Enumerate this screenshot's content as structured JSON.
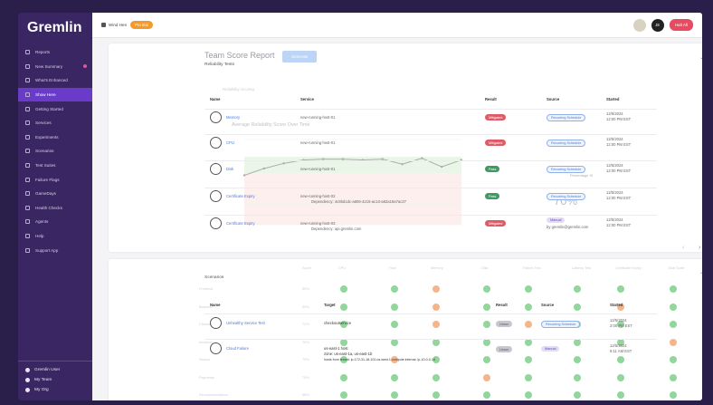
{
  "app": {
    "logo": "Gremlin"
  },
  "sidebar": {
    "items": [
      {
        "label": "Reports",
        "active": false,
        "icon": "chart-icon"
      },
      {
        "label": "New Summary",
        "active": false,
        "icon": "refresh-icon",
        "dot": true
      },
      {
        "label": "What's Enhanced",
        "active": false,
        "icon": "star-icon"
      },
      {
        "label": "Show Here",
        "active": true,
        "icon": "eye-icon"
      },
      {
        "label": "Getting Started",
        "active": false,
        "icon": "flag-icon"
      },
      {
        "label": "Services",
        "active": false,
        "icon": "cube-icon"
      },
      {
        "label": "Experiments",
        "active": false,
        "icon": "flask-icon"
      },
      {
        "label": "Scenarios",
        "active": false,
        "icon": "layers-icon"
      },
      {
        "label": "Test Suites",
        "active": false,
        "icon": "list-icon"
      },
      {
        "label": "Failure Flags",
        "active": false,
        "icon": "flag-icon"
      },
      {
        "label": "GameDays",
        "active": false,
        "icon": "calendar-icon"
      },
      {
        "label": "Health Checks",
        "active": false,
        "icon": "heart-icon"
      },
      {
        "label": "Agents",
        "active": false,
        "icon": "server-icon"
      },
      {
        "label": "Help",
        "active": false,
        "icon": "help-icon"
      },
      {
        "label": "Support App",
        "active": false,
        "icon": "support-icon"
      }
    ],
    "bottom": [
      {
        "label": "Gremlin User"
      },
      {
        "label": "My Team"
      },
      {
        "label": "My Org"
      }
    ]
  },
  "topbar": {
    "team": "Wind Hen",
    "trial": "Pro trial",
    "avatar_initials": "JE",
    "halt_label": "Halt All"
  },
  "report": {
    "title": "Team Score Report",
    "generate_label": "Generate",
    "subtitle": "Reliability Tests",
    "ghost_subtitle": "Reliability Scoring",
    "chart_title": "Average Reliability Score Over Time",
    "big_value": "70%",
    "overlay_label": "Percentage III",
    "columns": [
      "Name",
      "Service",
      "Result",
      "Source",
      "Started"
    ],
    "rows": [
      {
        "name": "Memory",
        "service": "new-running-host-01",
        "service2": "",
        "result": "Mitigated",
        "result_type": "red",
        "source": "Recurring Schedule",
        "source_type": "chip",
        "started": "12/5/2024",
        "started_time": "12:00 PM EST"
      },
      {
        "name": "CPU",
        "service": "new-running-host-01",
        "service2": "",
        "result": "Mitigated",
        "result_type": "red",
        "source": "Recurring Schedule",
        "source_type": "chip",
        "started": "12/5/2024",
        "started_time": "12:00 PM EST"
      },
      {
        "name": "Disk",
        "service": "new-running-host-01",
        "service2": "",
        "result": "Pass",
        "result_type": "green",
        "source": "Recurring Schedule",
        "source_type": "chip",
        "started": "12/5/2024",
        "started_time": "12:00 PM EST"
      },
      {
        "name": "Certificate Expiry",
        "service": "new-running-host-02",
        "service2": "Dependency: 4c9bd1dc-a606-4215-ac10-a82a19a7ac27",
        "result": "Pass",
        "result_type": "green",
        "source": "Recurring Schedule",
        "source_type": "chip",
        "started": "12/5/2024",
        "started_time": "12:00 PM EST"
      },
      {
        "name": "Certificate Expiry",
        "service": "new-running-host-03",
        "service2": "Dependency: api.gremlin.com",
        "result": "Mitigated",
        "result_type": "red",
        "source": "Manual",
        "source_type": "purple",
        "source2": "by gremlin@gremlin.com",
        "started": "12/5/2024",
        "started_time": "12:00 PM EST"
      }
    ]
  },
  "scenarios": {
    "title": "Scenarios",
    "ghost_columns": [
      "Score",
      "CPU",
      "Host",
      "Memory",
      "Disk",
      "Failure Test",
      "Latency Test",
      "Certificate Expiry",
      "Total Scale"
    ],
    "ghost_rows": [
      "Frontend",
      "Backend",
      "Checkout",
      "Inventory",
      "Search",
      "Payments",
      "Recommendations"
    ],
    "ghost_scores": [
      "89%",
      "80%",
      "72%",
      "70%",
      "70%",
      "70%",
      "68%"
    ],
    "columns": [
      "Name",
      "Target",
      "Result",
      "Source",
      "Started"
    ],
    "rows": [
      {
        "name": "Unhealthy Service Test",
        "target": "checkoutservice",
        "target2": "",
        "target3": "",
        "result": "Unrun",
        "source": "Recurring Schedule",
        "source_type": "chip",
        "started": "12/5/2024",
        "started_time": "2:00 PM EST"
      },
      {
        "name": "Cloud Failure",
        "target": "us-east-1 host",
        "target2": "zone: us-east-1a, us-east-1b",
        "target3": "hosts from tenant: ip-172-31-18-102.us-west-1.compute.internal, ip-10-0-0-14",
        "result": "Unrun",
        "source": "Manual",
        "source_type": "purple",
        "started": "12/5/2024",
        "started_time": "9:11 AM EST"
      }
    ]
  },
  "chart_data": {
    "type": "line",
    "title": "Average Reliability Score Over Time",
    "x": [
      1,
      2,
      3,
      4,
      5,
      6,
      7,
      8,
      9,
      10,
      11,
      12
    ],
    "series": [
      {
        "values": [
          58,
          66,
          72,
          76,
          77,
          77,
          76,
          77,
          71,
          78,
          68,
          76
        ]
      }
    ],
    "ylim": [
      0,
      100
    ],
    "grid": true
  }
}
